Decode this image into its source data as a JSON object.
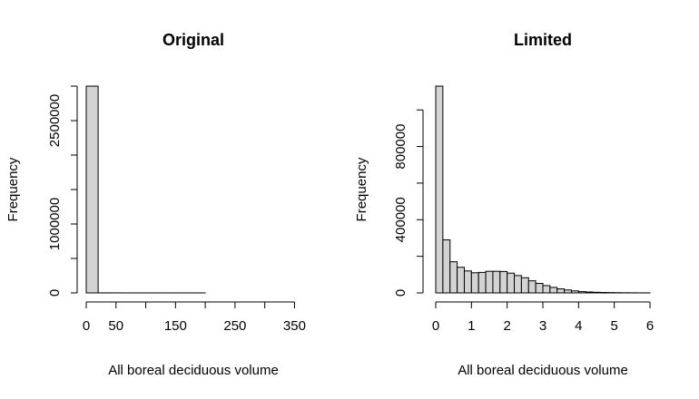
{
  "chart_data": [
    {
      "type": "bar",
      "title": "Original",
      "xlabel": "All boreal deciduous volume",
      "ylabel": "Frequency",
      "xlim": [
        0,
        360
      ],
      "ylim": [
        0,
        3000000
      ],
      "bin_width": 20,
      "x_ticks": [
        0,
        50,
        150,
        250,
        350
      ],
      "x_tick_marks": [
        0,
        50,
        100,
        150,
        200,
        250,
        300,
        350
      ],
      "y_ticks": [
        0,
        1000000,
        2500000
      ],
      "y_tick_marks": [
        0,
        500000,
        1000000,
        1500000,
        2000000,
        2500000,
        3000000
      ],
      "bins_start": [
        0,
        20,
        40,
        60,
        80,
        100,
        120,
        140,
        160,
        180,
        200,
        220,
        240,
        260,
        280,
        300,
        320,
        340
      ],
      "values": [
        3000000,
        1000,
        500,
        300,
        200,
        150,
        120,
        100,
        80,
        70,
        60,
        50,
        40,
        30,
        25,
        20,
        15,
        10
      ],
      "bar_color": "#d3d3d3",
      "grid": false
    },
    {
      "type": "bar",
      "title": "Limited",
      "xlabel": "All boreal deciduous volume",
      "ylabel": "Frequency",
      "xlim": [
        0,
        6
      ],
      "ylim": [
        0,
        1000000
      ],
      "bin_width": 0.2,
      "x_ticks": [
        0,
        1,
        2,
        3,
        4,
        5,
        6
      ],
      "y_ticks": [
        0,
        400000,
        800000
      ],
      "y_tick_marks": [
        0,
        200000,
        400000,
        600000,
        800000,
        1000000
      ],
      "bins_start": [
        0,
        0.2,
        0.4,
        0.6,
        0.8,
        1.0,
        1.2,
        1.4,
        1.6,
        1.8,
        2.0,
        2.2,
        2.4,
        2.6,
        2.8,
        3.0,
        3.2,
        3.4,
        3.6,
        3.8,
        4.0,
        4.2,
        4.4,
        4.6,
        4.8,
        5.0,
        5.2,
        5.4,
        5.6,
        5.8
      ],
      "values": [
        1130000,
        290000,
        170000,
        140000,
        120000,
        110000,
        112000,
        118000,
        118000,
        117000,
        108000,
        95000,
        83000,
        66000,
        52000,
        40000,
        30000,
        22000,
        16000,
        11000,
        7000,
        5000,
        3500,
        2500,
        1800,
        1200,
        800,
        600,
        400,
        300
      ],
      "bar_color": "#d3d3d3",
      "grid": false
    }
  ]
}
